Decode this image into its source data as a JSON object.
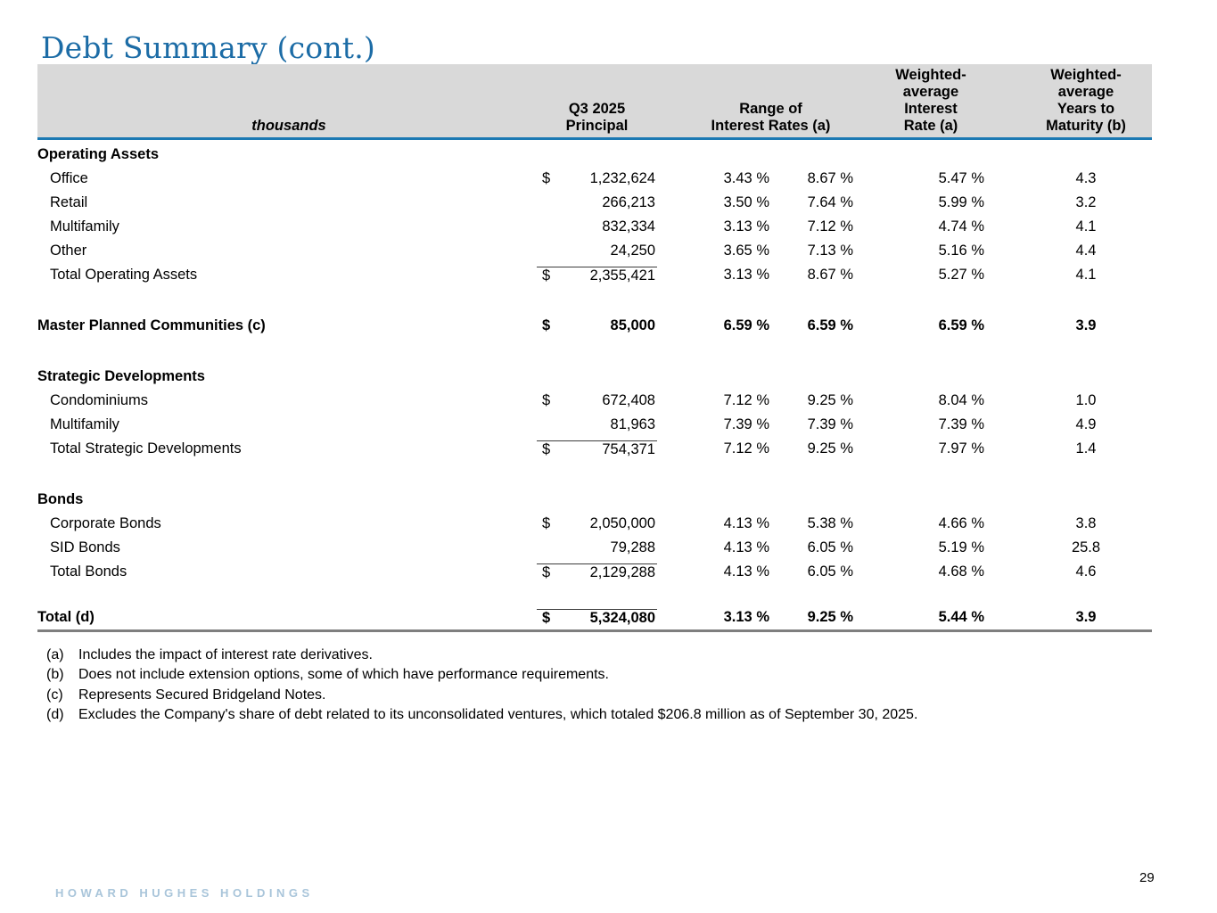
{
  "page": {
    "title": "Debt Summary (cont.)",
    "footer_brand": "HOWARD HUGHES HOLDINGS",
    "page_number": "29"
  },
  "colors": {
    "title_blue": "#1c6ca6",
    "header_rule_blue": "#1b79b3",
    "header_gray": "#d9d9d9",
    "bottom_rule_gray": "#7f7f7f",
    "footer_brand_blue": "#a9c5da"
  },
  "table": {
    "unit_label": "thousands",
    "headers": {
      "principal": "Q3 2025\nPrincipal",
      "range": "Range of\nInterest Rates (a)",
      "wa_rate": "Weighted-\naverage\nInterest\nRate (a)",
      "wa_years": "Weighted-\naverage\nYears to\nMaturity (b)"
    },
    "rows": [
      {
        "type": "section",
        "bold": true,
        "label": "Operating Assets"
      },
      {
        "type": "data",
        "indent": true,
        "label": "Office",
        "dollar": "$",
        "principal": "1,232,624",
        "rate_low": "3.43 %",
        "rate_high": "8.67 %",
        "wa_rate": "5.47 %",
        "wa_years": "4.3"
      },
      {
        "type": "data",
        "indent": true,
        "label": "Retail",
        "principal": "266,213",
        "rate_low": "3.50 %",
        "rate_high": "7.64 %",
        "wa_rate": "5.99 %",
        "wa_years": "3.2"
      },
      {
        "type": "data",
        "indent": true,
        "label": "Multifamily",
        "principal": "832,334",
        "rate_low": "3.13 %",
        "rate_high": "7.12 %",
        "wa_rate": "4.74 %",
        "wa_years": "4.1"
      },
      {
        "type": "data",
        "indent": true,
        "label": "Other",
        "principal": "24,250",
        "rate_low": "3.65 %",
        "rate_high": "7.13 %",
        "wa_rate": "5.16 %",
        "wa_years": "4.4"
      },
      {
        "type": "total",
        "indent": true,
        "rule_above_principal": true,
        "label": "Total Operating Assets",
        "dollar": "$",
        "principal": "2,355,421",
        "rate_low": "3.13 %",
        "rate_high": "8.67 %",
        "wa_rate": "5.27 %",
        "wa_years": "4.1"
      },
      {
        "type": "standalone",
        "bold": true,
        "spacer_before": "lg",
        "label": "Master Planned Communities (c)",
        "dollar": "$",
        "principal": "85,000",
        "rate_low": "6.59 %",
        "rate_high": "6.59 %",
        "wa_rate": "6.59 %",
        "wa_years": "3.9"
      },
      {
        "type": "section",
        "bold": true,
        "spacer_before": "lg",
        "label": "Strategic Developments"
      },
      {
        "type": "data",
        "indent": true,
        "label": "Condominiums",
        "dollar": "$",
        "principal": "672,408",
        "rate_low": "7.12 %",
        "rate_high": "9.25 %",
        "wa_rate": "8.04 %",
        "wa_years": "1.0"
      },
      {
        "type": "data",
        "indent": true,
        "label": "Multifamily",
        "principal": "81,963",
        "rate_low": "7.39 %",
        "rate_high": "7.39 %",
        "wa_rate": "7.39 %",
        "wa_years": "4.9"
      },
      {
        "type": "total",
        "indent": true,
        "rule_above_principal": true,
        "label": "Total Strategic Developments",
        "dollar": "$",
        "principal": "754,371",
        "rate_low": "7.12 %",
        "rate_high": "9.25 %",
        "wa_rate": "7.97 %",
        "wa_years": "1.4"
      },
      {
        "type": "section",
        "bold": true,
        "spacer_before": "lg",
        "label": "Bonds"
      },
      {
        "type": "data",
        "indent": true,
        "label": "Corporate Bonds",
        "dollar": "$",
        "principal": "2,050,000",
        "rate_low": "4.13 %",
        "rate_high": "5.38 %",
        "wa_rate": "4.66 %",
        "wa_years": "3.8"
      },
      {
        "type": "data",
        "indent": true,
        "label": "SID Bonds",
        "principal": "79,288",
        "rate_low": "4.13 %",
        "rate_high": "6.05 %",
        "wa_rate": "5.19 %",
        "wa_years": "25.8"
      },
      {
        "type": "total",
        "indent": true,
        "rule_above_principal": true,
        "label": "Total Bonds",
        "dollar": "$",
        "principal": "2,129,288",
        "rate_low": "4.13 %",
        "rate_high": "6.05 %",
        "wa_rate": "4.68 %",
        "wa_years": "4.6"
      },
      {
        "type": "grand_total",
        "bold": true,
        "spacer_before": "sm",
        "rule_above_principal": true,
        "full_rule_below": true,
        "label": "Total (d)",
        "dollar": "$",
        "principal": "5,324,080",
        "rate_low": "3.13 %",
        "rate_high": "9.25 %",
        "wa_rate": "5.44 %",
        "wa_years": "3.9"
      }
    ]
  },
  "footnotes": [
    {
      "marker": "(a)",
      "text": "Includes the impact of interest rate derivatives."
    },
    {
      "marker": "(b)",
      "text": "Does not include extension options, some of which have performance requirements."
    },
    {
      "marker": "(c)",
      "text": "Represents Secured Bridgeland Notes."
    },
    {
      "marker": "(d)",
      "text": "Excludes the Company's share of debt related to its unconsolidated ventures, which totaled $206.8 million as of September 30, 2025."
    }
  ]
}
